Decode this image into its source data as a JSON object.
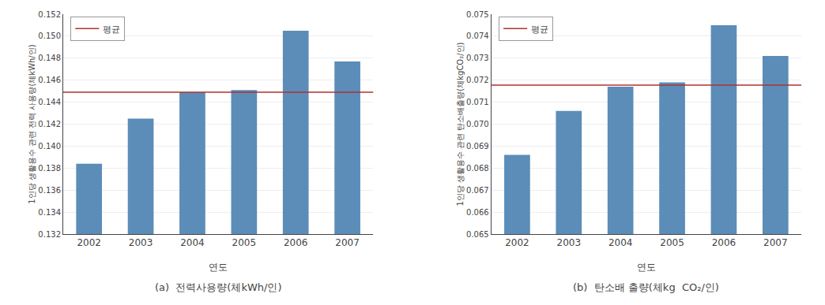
{
  "chart_data": [
    {
      "type": "bar",
      "categories": [
        "2002",
        "2003",
        "2004",
        "2005",
        "2006",
        "2007"
      ],
      "values": [
        0.1384,
        0.1425,
        0.1449,
        0.1451,
        0.1505,
        0.1477
      ],
      "color": "#5B8DB8",
      "mean": {
        "name": "평균",
        "value": 0.1449,
        "color": "#B03030"
      },
      "xlabel": "연도",
      "ylabel": "1인당 생활용수 관련 전력 사용량(체kWh/인)",
      "caption": "(a)  전력사용량(체kWh/인)",
      "ylim": [
        0.132,
        0.152
      ],
      "yticks": [
        0.132,
        0.134,
        0.136,
        0.138,
        {
          "value": 0.14,
          "label": "0.140"
        },
        0.142,
        0.144,
        0.146,
        0.148,
        {
          "value": 0.15,
          "label": "0.150"
        },
        0.152
      ],
      "grid": true,
      "legend": "upper left"
    },
    {
      "type": "bar",
      "categories": [
        "2002",
        "2003",
        "2004",
        "2005",
        "2006",
        "2007"
      ],
      "values": [
        0.0686,
        0.0706,
        0.0717,
        0.0719,
        0.0745,
        0.0731
      ],
      "color": "#5B8DB8",
      "mean": {
        "name": "평균",
        "value": 0.07177,
        "color": "#B03030"
      },
      "xlabel": "연도",
      "ylabel": "1인당 생활용수 관련 탄소배출량(체kgCO₂/인)",
      "caption": "(b)  탄소배 출량(체kg  CO₂/인)",
      "ylim": [
        0.065,
        0.075
      ],
      "yticks": [
        0.065,
        0.066,
        0.067,
        0.068,
        0.069,
        {
          "value": 0.07,
          "label": "0.070"
        },
        0.071,
        0.072,
        0.073,
        0.074,
        0.075
      ],
      "grid": true,
      "legend": "upper left"
    }
  ]
}
